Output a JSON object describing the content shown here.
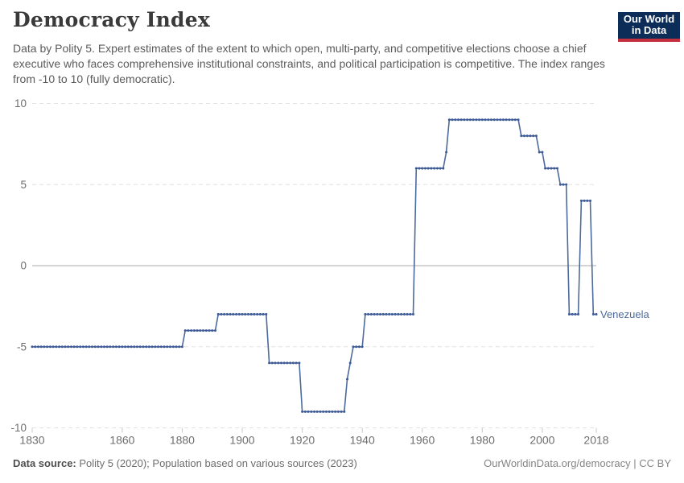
{
  "header": {
    "title": "Democracy Index",
    "subtitle": "Data by Polity 5. Expert estimates of the extent to which open, multi-party, and competitive elections choose a chief executive who faces comprehensive institutional constraints, and political participation is competitive. The index ranges from -10 to 10 (fully democratic).",
    "logo_line1": "Our World",
    "logo_line2": "in Data"
  },
  "chart_data": {
    "type": "line",
    "title": "Democracy Index",
    "entity": "Venezuela",
    "xlim": [
      1830,
      2018
    ],
    "ylim": [
      -10,
      10
    ],
    "x_ticks": [
      1830,
      1860,
      1880,
      1900,
      1920,
      1940,
      1960,
      1980,
      2000,
      2018
    ],
    "y_ticks": [
      10,
      5,
      0,
      -5,
      -10
    ],
    "grid": "horizontal dashed gridlines, solid zero line",
    "legend_position": "label at end of line",
    "markers": "dot at every yearly data point",
    "series": [
      {
        "name": "Venezuela",
        "value_runs": [
          {
            "start": 1830,
            "end": 1880,
            "value": -5
          },
          {
            "start": 1881,
            "end": 1891,
            "value": -4
          },
          {
            "start": 1892,
            "end": 1908,
            "value": -3
          },
          {
            "start": 1909,
            "end": 1919,
            "value": -6
          },
          {
            "start": 1920,
            "end": 1934,
            "value": -9
          },
          {
            "start": 1935,
            "end": 1935,
            "value": -7
          },
          {
            "start": 1936,
            "end": 1936,
            "value": -6
          },
          {
            "start": 1937,
            "end": 1940,
            "value": -5
          },
          {
            "start": 1941,
            "end": 1957,
            "value": -3
          },
          {
            "start": 1958,
            "end": 1967,
            "value": 6
          },
          {
            "start": 1968,
            "end": 1968,
            "value": 7
          },
          {
            "start": 1969,
            "end": 1992,
            "value": 9
          },
          {
            "start": 1993,
            "end": 1998,
            "value": 8
          },
          {
            "start": 1999,
            "end": 2000,
            "value": 7
          },
          {
            "start": 2001,
            "end": 2005,
            "value": 6
          },
          {
            "start": 2006,
            "end": 2008,
            "value": 5
          },
          {
            "start": 2009,
            "end": 2012,
            "value": -3
          },
          {
            "start": 2013,
            "end": 2016,
            "value": 4
          },
          {
            "start": 2017,
            "end": 2018,
            "value": -3
          }
        ]
      }
    ]
  },
  "footer": {
    "source_label": "Data source:",
    "source_text": " Polity 5 (2020); Population based on various sources (2023)",
    "right_text": "OurWorldinData.org/democracy | CC BY"
  },
  "colors": {
    "line": "#4C6A9C",
    "marker": "#3D5A96",
    "grid": "#e2e2e2",
    "zero_line": "#a8a8a8",
    "tick": "#c8c8c8",
    "axis_text": "#6e6e6e",
    "title_text": "#3a3a3a",
    "subtitle_text": "#5b5b5b",
    "footer_text": "#6d6d6d",
    "footer_label": "#4f4f4f",
    "footer_right_text": "#858585",
    "logo_bg": "#0d2d59",
    "logo_red": "#c5303e"
  }
}
